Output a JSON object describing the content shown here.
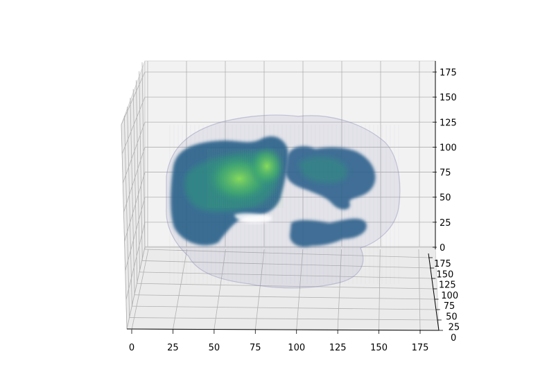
{
  "chart_data": {
    "type": "scatter",
    "projection": "3d",
    "grid": true,
    "title": "",
    "xlabel": "",
    "ylabel": "",
    "zlabel": "",
    "axes": {
      "x": {
        "ticks": [
          0,
          25,
          50,
          75,
          100,
          125,
          150,
          175
        ],
        "labels": [
          "0",
          "25",
          "50",
          "75",
          "100",
          "125",
          "150",
          "175"
        ],
        "lim": [
          0,
          180
        ]
      },
      "y": {
        "ticks": [
          0,
          25,
          50,
          75,
          100,
          125,
          150,
          175
        ],
        "labels": [
          "0",
          "25",
          "50",
          "75",
          "100",
          "125",
          "150",
          "175"
        ],
        "lim": [
          0,
          180
        ]
      },
      "z": {
        "ticks": [
          0,
          25,
          50,
          75,
          100,
          125,
          150,
          175
        ],
        "labels": [
          "0",
          "25",
          "50",
          "75",
          "100",
          "125",
          "150",
          "175"
        ],
        "lim": [
          0,
          180
        ]
      }
    },
    "colors": {
      "pane": "#f2f2f2",
      "grid": "#b0b0b0",
      "shell": "#8c8fb8",
      "volume_low": "#2a5f8a",
      "volume_mid": "#2e8f80",
      "volume_high": "#6fd45a"
    },
    "layers": [
      {
        "name": "",
        "kind": "transparent-shell",
        "x_range": [
          20,
          155
        ],
        "z_range": [
          0,
          150
        ]
      },
      {
        "name": "",
        "kind": "dense-volume",
        "x_range": [
          25,
          150
        ],
        "z_range": [
          5,
          120
        ],
        "colormap": "viridis"
      }
    ]
  }
}
